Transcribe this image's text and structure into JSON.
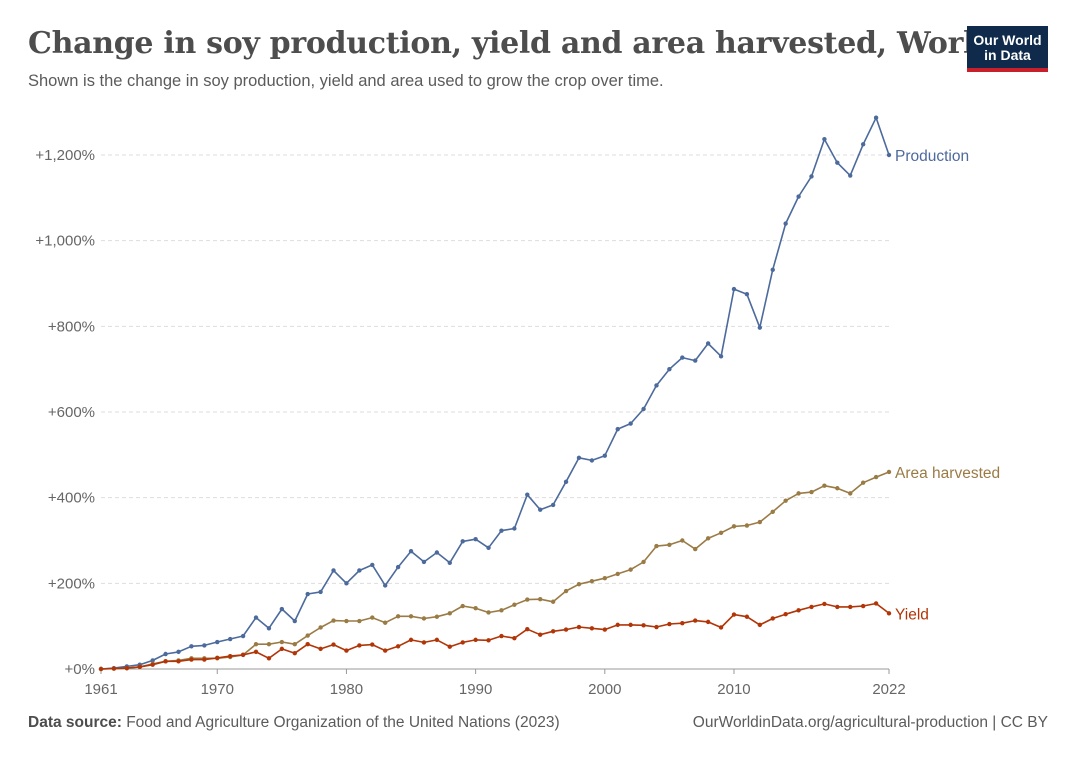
{
  "header": {
    "title": "Change in soy production, yield and area harvested, World",
    "subtitle": "Shown is the change in soy production, yield and area used to grow the crop over time."
  },
  "logo": {
    "line1": "Our World",
    "line2": "in Data"
  },
  "footer": {
    "source_label": "Data source:",
    "source_text": "Food and Agriculture Organization of the United Nations (2023)",
    "url_text": "OurWorldinData.org/agricultural-production | CC BY"
  },
  "colors": {
    "production": "#4c6a9c",
    "area": "#9a7b45",
    "yield": "#b13507",
    "grid": "#dddddd",
    "axis_text": "#666666"
  },
  "chart_data": {
    "type": "line",
    "x_ticks": [
      1961,
      1970,
      1980,
      1990,
      2000,
      2010,
      2022
    ],
    "y_ticks": [
      0,
      200,
      400,
      600,
      800,
      1000,
      1200
    ],
    "y_tick_labels": [
      "+0%",
      "+200%",
      "+400%",
      "+600%",
      "+800%",
      "+1,000%",
      "+1,200%"
    ],
    "xlim": [
      1961,
      2022
    ],
    "ylim": [
      0,
      1200
    ],
    "grid": "horizontal dashed",
    "x": [
      1961,
      1962,
      1963,
      1964,
      1965,
      1966,
      1967,
      1968,
      1969,
      1970,
      1971,
      1972,
      1973,
      1974,
      1975,
      1976,
      1977,
      1978,
      1979,
      1980,
      1981,
      1982,
      1983,
      1984,
      1985,
      1986,
      1987,
      1988,
      1989,
      1990,
      1991,
      1992,
      1993,
      1994,
      1995,
      1996,
      1997,
      1998,
      1999,
      2000,
      2001,
      2002,
      2003,
      2004,
      2005,
      2006,
      2007,
      2008,
      2009,
      2010,
      2011,
      2012,
      2013,
      2014,
      2015,
      2016,
      2017,
      2018,
      2019,
      2020,
      2021,
      2022
    ],
    "series": [
      {
        "name": "Production",
        "color_key": "production",
        "values": [
          0,
          2,
          6,
          10,
          20,
          35,
          40,
          53,
          55,
          63,
          70,
          77,
          120,
          95,
          140,
          112,
          175,
          180,
          230,
          200,
          230,
          243,
          195,
          238,
          275,
          250,
          272,
          248,
          298,
          303,
          283,
          323,
          328,
          407,
          372,
          383,
          437,
          493,
          487,
          498,
          560,
          573,
          607,
          662,
          700,
          727,
          720,
          760,
          730,
          887,
          875,
          797,
          932,
          1040,
          1103,
          1150,
          1237,
          1182,
          1152,
          1225,
          1287,
          1200
        ]
      },
      {
        "name": "Area harvested",
        "color_key": "area",
        "values": [
          0,
          1,
          2,
          5,
          12,
          18,
          20,
          25,
          25,
          25,
          28,
          33,
          58,
          58,
          63,
          58,
          78,
          97,
          113,
          112,
          112,
          120,
          108,
          123,
          123,
          118,
          122,
          130,
          147,
          142,
          132,
          137,
          150,
          162,
          163,
          157,
          182,
          198,
          205,
          212,
          222,
          232,
          250,
          287,
          290,
          300,
          280,
          305,
          318,
          333,
          335,
          343,
          367,
          393,
          410,
          413,
          428,
          422,
          410,
          435,
          448,
          460
        ]
      },
      {
        "name": "Yield",
        "color_key": "yield",
        "values": [
          0,
          1,
          2,
          5,
          10,
          18,
          18,
          22,
          22,
          26,
          30,
          33,
          40,
          25,
          47,
          37,
          58,
          47,
          57,
          43,
          55,
          57,
          43,
          53,
          68,
          62,
          68,
          52,
          62,
          68,
          67,
          77,
          72,
          93,
          80,
          88,
          92,
          98,
          95,
          92,
          103,
          103,
          102,
          98,
          105,
          107,
          113,
          110,
          97,
          127,
          122,
          103,
          118,
          128,
          137,
          145,
          152,
          145,
          145,
          147,
          153,
          130
        ]
      }
    ]
  }
}
